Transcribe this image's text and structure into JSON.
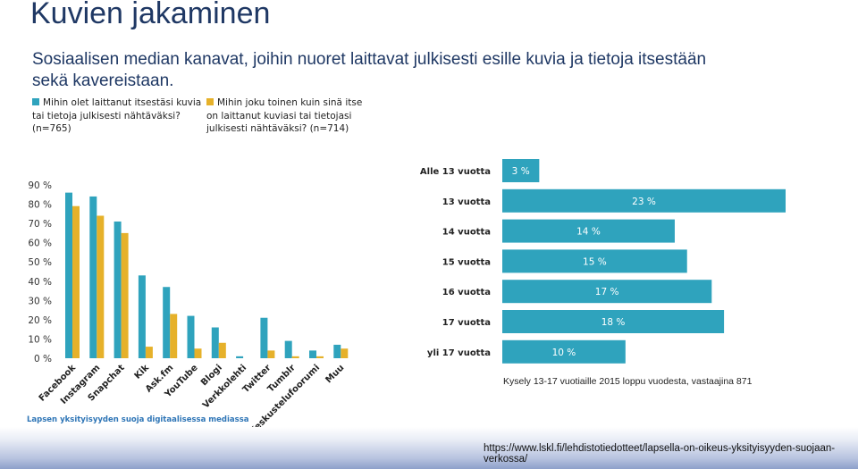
{
  "slide": {
    "title": "Kuvien jakaminen",
    "subtitle": "Sosiaalisen median kanavat, joihin nuoret laittavat julkisesti esille kuvia ja tietoja itsestään sekä kavereistaan.",
    "survey_note": "Kysely 13-17 vuotiaille 2015 loppu vuodesta, vastaajina 871",
    "footer_caption": "Lapsen yksityisyyden suoja digitaalisessa mediassa",
    "footer_url": "https://www.lskl.fi/lehdistotiedotteet/lapsella-on-oikeus-yksityisyyden-suojaan-verkossa/"
  },
  "legend": [
    {
      "label": "Mihin olet laittanut itsestäsi kuvia tai tietoja julkisesti nähtäväksi? (n=765)",
      "color": "#2fa3bd"
    },
    {
      "label": "Mihin joku toinen kuin sinä itse on laittanut kuviasi tai tietojasi julkisesti nähtäväksi? (n=714)",
      "color": "#e6b12a"
    }
  ],
  "chart_data": [
    {
      "type": "bar",
      "title": "",
      "categories": [
        "Facebook",
        "Instagram",
        "Snapchat",
        "Kik",
        "Ask.fm",
        "YouTube",
        "Blogi",
        "Verkkolehti",
        "Twitter",
        "Tumblr",
        "Keskustelufoorumi",
        "Muu"
      ],
      "series": [
        {
          "name": "Mihin olet laittanut itsestäsi kuvia tai tietoja julkisesti nähtäväksi? (n=765)",
          "color": "#2fa3bd",
          "values": [
            86,
            84,
            71,
            43,
            37,
            22,
            16,
            1,
            21,
            9,
            4,
            7
          ]
        },
        {
          "name": "Mihin joku toinen kuin sinä itse on laittanut kuviasi tai tietojasi julkisesti nähtäväksi? (n=714)",
          "color": "#e6b12a",
          "values": [
            79,
            74,
            65,
            6,
            23,
            5,
            8,
            0,
            4,
            1,
            1,
            5
          ]
        }
      ],
      "yticks": [
        "0 %",
        "10 %",
        "20 %",
        "30 %",
        "40 %",
        "50 %",
        "60 %",
        "70 %",
        "80 %",
        "90 %"
      ],
      "ylim": [
        0,
        90
      ],
      "xlabel": "",
      "ylabel": "",
      "grid": false
    },
    {
      "type": "bar",
      "orientation": "horizontal",
      "title": "",
      "categories": [
        "Alle 13 vuotta",
        "13 vuotta",
        "14 vuotta",
        "15 vuotta",
        "16 vuotta",
        "17 vuotta",
        "yli 17 vuotta"
      ],
      "values": [
        3,
        23,
        14,
        15,
        17,
        18,
        10
      ],
      "value_labels": [
        "3 %",
        "23 %",
        "14 %",
        "15 %",
        "17 %",
        "18 %",
        "10 %"
      ],
      "color": "#2fa3bd",
      "xlim": [
        0,
        23
      ],
      "grid": false
    }
  ]
}
